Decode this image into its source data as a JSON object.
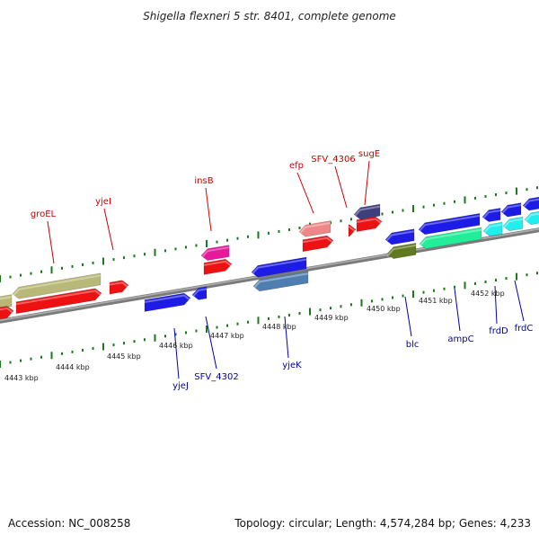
{
  "title": "Shigella flexneri 5 str. 8401, complete genome",
  "footer": {
    "accession": "Accession: NC_008258",
    "topology": "Topology: circular; Length: 4,574,284 bp; Genes: 4,233"
  },
  "colors": {
    "top_label": "#cc0000",
    "bottom_label": "#0000aa",
    "tick": "#1a7a1a",
    "backbone": "#808080"
  },
  "ticks_kbp": [
    "4443 kbp",
    "4444 kbp",
    "4445 kbp",
    "4446 kbp",
    "4447 kbp",
    "4448 kbp",
    "4449 kbp",
    "4450 kbp",
    "4451 kbp",
    "4452 kbp"
  ],
  "labels_top": [
    "groEL",
    "yjeI",
    "insB",
    "efp",
    "SFV_4306",
    "sugE"
  ],
  "labels_bottom": [
    "yjeJ",
    "SFV_4302",
    "yjeK",
    "blc",
    "ampC",
    "frdD",
    "frdC"
  ]
}
